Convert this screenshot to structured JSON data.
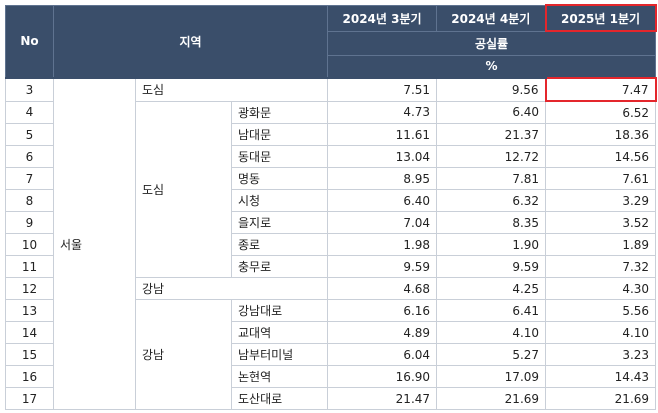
{
  "header": {
    "no": "No",
    "region": "지역",
    "periods": [
      "2024년 3분기",
      "2024년 4분기",
      "2025년 1분기"
    ],
    "metric": "공실률",
    "unit": "%"
  },
  "highlight_color": "#e4262c",
  "header_bg": "#3a4e6a",
  "groups": {
    "city": "서울",
    "downtown": "도심",
    "gangnam": "강남"
  },
  "rows": [
    {
      "no": "3",
      "district": "도심",
      "area": "",
      "q3": "7.51",
      "q4": "9.56",
      "q1": "7.47"
    },
    {
      "no": "4",
      "district": "",
      "area": "광화문",
      "q3": "4.73",
      "q4": "6.40",
      "q1": "6.52"
    },
    {
      "no": "5",
      "district": "",
      "area": "남대문",
      "q3": "11.61",
      "q4": "21.37",
      "q1": "18.36"
    },
    {
      "no": "6",
      "district": "",
      "area": "동대문",
      "q3": "13.04",
      "q4": "12.72",
      "q1": "14.56"
    },
    {
      "no": "7",
      "district": "",
      "area": "명동",
      "q3": "8.95",
      "q4": "7.81",
      "q1": "7.61"
    },
    {
      "no": "8",
      "district": "",
      "area": "시청",
      "q3": "6.40",
      "q4": "6.32",
      "q1": "3.29"
    },
    {
      "no": "9",
      "district": "",
      "area": "을지로",
      "q3": "7.04",
      "q4": "8.35",
      "q1": "3.52"
    },
    {
      "no": "10",
      "district": "",
      "area": "종로",
      "q3": "1.98",
      "q4": "1.90",
      "q1": "1.89"
    },
    {
      "no": "11",
      "district": "",
      "area": "충무로",
      "q3": "9.59",
      "q4": "9.59",
      "q1": "7.32"
    },
    {
      "no": "12",
      "district": "강남",
      "area": "",
      "q3": "4.68",
      "q4": "4.25",
      "q1": "4.30"
    },
    {
      "no": "13",
      "district": "",
      "area": "강남대로",
      "q3": "6.16",
      "q4": "6.41",
      "q1": "5.56"
    },
    {
      "no": "14",
      "district": "",
      "area": "교대역",
      "q3": "4.89",
      "q4": "4.10",
      "q1": "4.10"
    },
    {
      "no": "15",
      "district": "",
      "area": "남부터미널",
      "q3": "6.04",
      "q4": "5.27",
      "q1": "3.23"
    },
    {
      "no": "16",
      "district": "",
      "area": "논현역",
      "q3": "16.90",
      "q4": "17.09",
      "q1": "14.43"
    },
    {
      "no": "17",
      "district": "",
      "area": "도산대로",
      "q3": "21.47",
      "q4": "21.69",
      "q1": "21.69"
    }
  ]
}
